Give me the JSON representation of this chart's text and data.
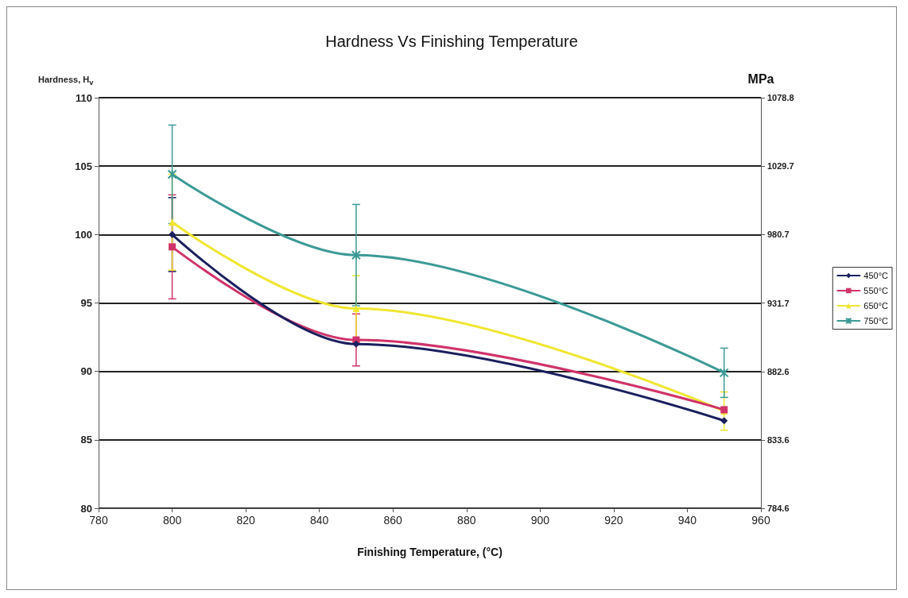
{
  "chart_data": {
    "type": "line",
    "title": "Hardness Vs Finishing Temperature",
    "xlabel": "Finishing Temperature, (°C)",
    "ylabel": "Hardness, H$_{v}$",
    "y2label": "MPa",
    "x": [
      800,
      850,
      950
    ],
    "series": [
      {
        "name": "450°C",
        "color": "#1a1f5e",
        "marker": "diamond",
        "values": [
          100,
          92.0,
          86.4
        ],
        "errors": [
          2.7,
          null,
          null
        ]
      },
      {
        "name": "550°C",
        "color": "#d0336a",
        "marker": "square",
        "values": [
          99.1,
          92.3,
          87.2
        ],
        "errors": [
          3.8,
          1.9,
          null
        ]
      },
      {
        "name": "650°C",
        "color": "#f0e632",
        "marker": "triangle",
        "values": [
          100.9,
          94.6,
          87.1
        ],
        "errors": [
          3.5,
          2.4,
          1.4
        ]
      },
      {
        "name": "750°C",
        "color": "#3c9a96",
        "marker": "cross",
        "values": [
          104.4,
          98.5,
          89.9
        ],
        "errors": [
          3.6,
          3.7,
          1.8
        ]
      }
    ],
    "xlim": [
      780,
      960
    ],
    "xticks": [
      780,
      800,
      820,
      840,
      860,
      880,
      900,
      920,
      940,
      960
    ],
    "ylim": [
      80,
      110
    ],
    "yticks": [
      80,
      85,
      90,
      95,
      100,
      105,
      110
    ],
    "y2lim": [
      784.6,
      1078.8
    ],
    "y2ticks": [
      784.6,
      833.6,
      882.6,
      931.7,
      980.7,
      1029.7,
      1078.8
    ],
    "grid": "y",
    "legend": "right",
    "line_style": "solid"
  }
}
